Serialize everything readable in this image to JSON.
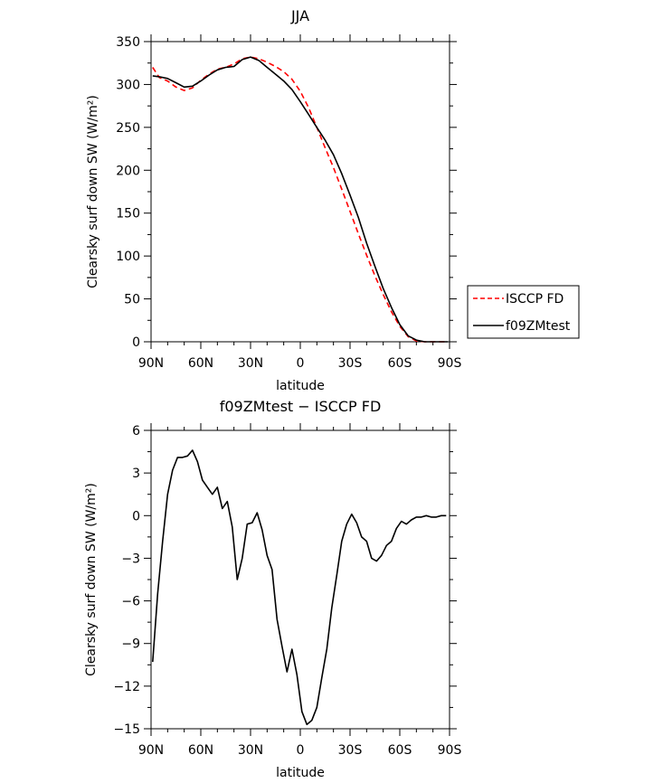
{
  "chart_data": [
    {
      "type": "line",
      "title": "JJA",
      "xlabel": "latitude",
      "ylabel": "Clearsky surf down SW (W/m²)",
      "xlim": [
        90,
        -90
      ],
      "ylim": [
        0,
        350
      ],
      "xticks": [
        90,
        60,
        30,
        0,
        -30,
        -60,
        -90
      ],
      "xtick_labels": [
        "90N",
        "60N",
        "30N",
        "0",
        "30S",
        "60S",
        "90S"
      ],
      "yticks": [
        0,
        50,
        100,
        150,
        200,
        250,
        300,
        350
      ],
      "ytick_labels": [
        "0",
        "50",
        "100",
        "150",
        "200",
        "250",
        "300",
        "350"
      ],
      "grid": false,
      "legend_position": "right",
      "series": [
        {
          "name": "ISCCP FD",
          "color": "#ff0000",
          "dash": "dashed",
          "x": [
            89,
            85,
            80,
            75,
            70,
            65,
            60,
            55,
            50,
            45,
            40,
            35,
            30,
            25,
            20,
            15,
            10,
            5,
            0,
            -5,
            -10,
            -15,
            -20,
            -25,
            -30,
            -35,
            -40,
            -45,
            -50,
            -55,
            -60,
            -65,
            -70,
            -75,
            -80,
            -85,
            -89
          ],
          "y": [
            320,
            308,
            304,
            297,
            293,
            296,
            305,
            312,
            318,
            320,
            324,
            330,
            332,
            330,
            326,
            321,
            315,
            306,
            292,
            273,
            250,
            226,
            203,
            178,
            152,
            126,
            101,
            77,
            55,
            35,
            18,
            6,
            1,
            0,
            0,
            0,
            0
          ]
        },
        {
          "name": "f09ZMtest",
          "color": "#000000",
          "dash": "solid",
          "x": [
            89,
            85,
            80,
            75,
            70,
            65,
            60,
            55,
            50,
            45,
            40,
            35,
            30,
            25,
            20,
            15,
            10,
            5,
            0,
            -5,
            -10,
            -15,
            -20,
            -25,
            -30,
            -35,
            -40,
            -45,
            -50,
            -55,
            -60,
            -65,
            -70,
            -75,
            -80,
            -85,
            -89
          ],
          "y": [
            310,
            309,
            307,
            302,
            297,
            298,
            304,
            311,
            317,
            320,
            321,
            329,
            332,
            328,
            320,
            312,
            304,
            294,
            280,
            265,
            250,
            235,
            218,
            196,
            171,
            145,
            115,
            88,
            62,
            40,
            20,
            7,
            2,
            0,
            0,
            0,
            0
          ]
        }
      ]
    },
    {
      "type": "line",
      "title": "f09ZMtest − ISCCP FD",
      "xlabel": "latitude",
      "ylabel": "Clearsky surf down SW (W/m²)",
      "xlim": [
        90,
        -90
      ],
      "ylim": [
        -15,
        6
      ],
      "xticks": [
        90,
        60,
        30,
        0,
        -30,
        -60,
        -90
      ],
      "xtick_labels": [
        "90N",
        "60N",
        "30N",
        "0",
        "30S",
        "60S",
        "90S"
      ],
      "yticks": [
        -15,
        -12,
        -9,
        -6,
        -3,
        0,
        3,
        6
      ],
      "ytick_labels": [
        "−15",
        "−12",
        "−9",
        "−6",
        "−3",
        "0",
        "3",
        "6"
      ],
      "grid": false,
      "series": [
        {
          "color": "#000000",
          "dash": "solid",
          "x": [
            89,
            86,
            83,
            80,
            77,
            74,
            71,
            68,
            65,
            62,
            59,
            56,
            53,
            50,
            47,
            44,
            41,
            38,
            35,
            32,
            29,
            26,
            23,
            20,
            17,
            14,
            11,
            8,
            5,
            2,
            -1,
            -4,
            -7,
            -10,
            -13,
            -16,
            -19,
            -22,
            -25,
            -28,
            -31,
            -34,
            -37,
            -40,
            -43,
            -46,
            -49,
            -52,
            -55,
            -58,
            -61,
            -64,
            -67,
            -70,
            -73,
            -76,
            -79,
            -82,
            -85,
            -88
          ],
          "y": [
            -10.3,
            -5.5,
            -1.8,
            1.5,
            3.2,
            4.1,
            4.1,
            4.2,
            4.6,
            3.8,
            2.5,
            2.0,
            1.5,
            2.0,
            0.5,
            1.0,
            -0.8,
            -4.5,
            -3.0,
            -0.6,
            -0.5,
            0.2,
            -1.0,
            -2.8,
            -3.8,
            -7.3,
            -9.2,
            -11.0,
            -9.4,
            -11.2,
            -13.8,
            -14.7,
            -14.4,
            -13.5,
            -11.4,
            -9.4,
            -6.5,
            -4.2,
            -1.8,
            -0.6,
            0.1,
            -0.5,
            -1.5,
            -1.8,
            -3.0,
            -3.2,
            -2.8,
            -2.1,
            -1.8,
            -0.9,
            -0.4,
            -0.6,
            -0.3,
            -0.1,
            -0.1,
            0.0,
            -0.1,
            -0.1,
            0.0,
            0.0
          ]
        }
      ]
    }
  ]
}
